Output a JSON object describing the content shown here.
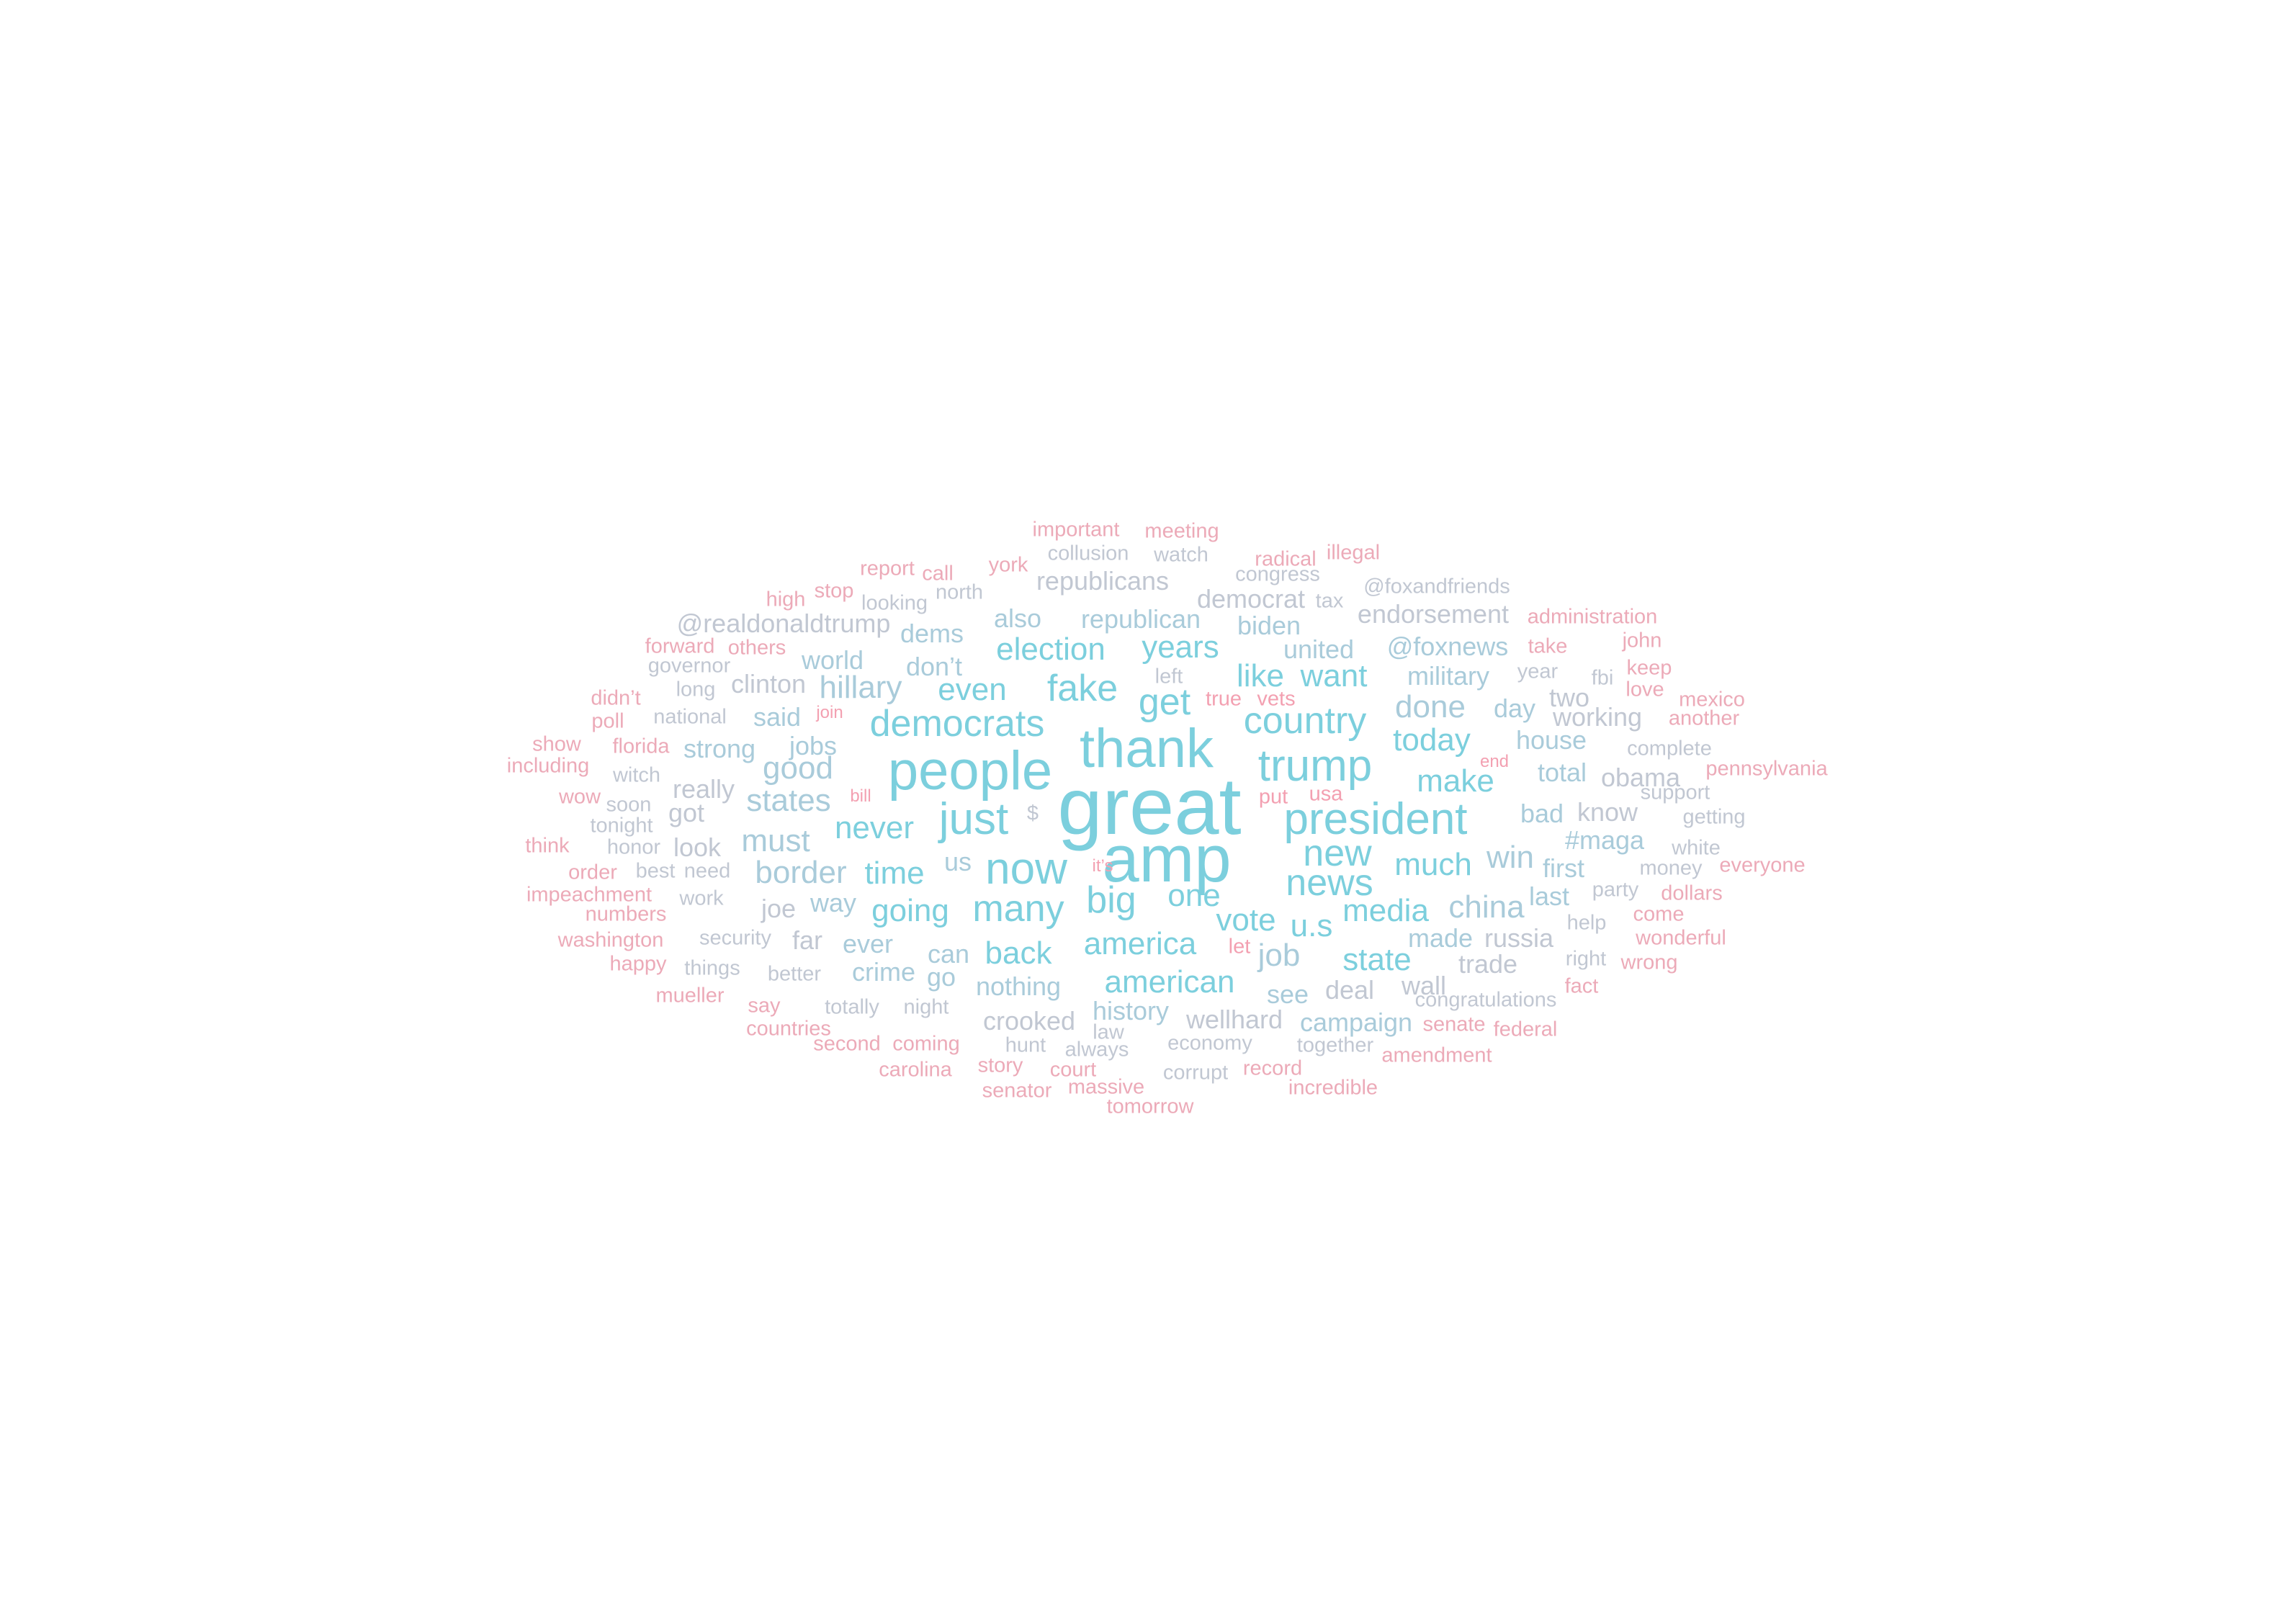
{
  "palette": {
    "primary": "#7ccfdd",
    "secondary": "#a9cbda",
    "tertiary": "#c1c7d2",
    "pink": "#ecaab8",
    "hotpink": "#f3a0b1"
  },
  "words": [
    {
      "text": "great",
      "tier": 10,
      "tone": "primary"
    },
    {
      "text": "amp",
      "tier": 9,
      "tone": "primary"
    },
    {
      "text": "people",
      "tier": 8,
      "tone": "primary"
    },
    {
      "text": "thank",
      "tier": 8,
      "tone": "primary"
    },
    {
      "text": "trump",
      "tier": 7,
      "tone": "primary"
    },
    {
      "text": "just",
      "tier": 7,
      "tone": "primary"
    },
    {
      "text": "now",
      "tier": 7,
      "tone": "primary"
    },
    {
      "text": "president",
      "tier": 7,
      "tone": "primary"
    },
    {
      "text": "news",
      "tier": 6,
      "tone": "primary"
    },
    {
      "text": "country",
      "tier": 6,
      "tone": "primary"
    },
    {
      "text": "democrats",
      "tier": 6,
      "tone": "primary"
    },
    {
      "text": "fake",
      "tier": 6,
      "tone": "primary"
    },
    {
      "text": "get",
      "tier": 6,
      "tone": "primary"
    },
    {
      "text": "big",
      "tier": 6,
      "tone": "primary"
    },
    {
      "text": "many",
      "tier": 6,
      "tone": "primary"
    },
    {
      "text": "new",
      "tier": 6,
      "tone": "primary"
    },
    {
      "text": "america",
      "tier": 5,
      "tone": "primary"
    },
    {
      "text": "never",
      "tier": 5,
      "tone": "primary"
    },
    {
      "text": "much",
      "tier": 5,
      "tone": "primary"
    },
    {
      "text": "media",
      "tier": 5,
      "tone": "primary"
    },
    {
      "text": "vote",
      "tier": 5,
      "tone": "primary"
    },
    {
      "text": "make",
      "tier": 5,
      "tone": "primary"
    },
    {
      "text": "even",
      "tier": 5,
      "tone": "primary"
    },
    {
      "text": "election",
      "tier": 5,
      "tone": "primary"
    },
    {
      "text": "years",
      "tier": 5,
      "tone": "primary"
    },
    {
      "text": "time",
      "tier": 5,
      "tone": "primary"
    },
    {
      "text": "going",
      "tier": 5,
      "tone": "primary"
    },
    {
      "text": "one",
      "tier": 5,
      "tone": "primary"
    },
    {
      "text": "u.s",
      "tier": 5,
      "tone": "primary"
    },
    {
      "text": "want",
      "tier": 5,
      "tone": "primary"
    },
    {
      "text": "like",
      "tier": 5,
      "tone": "primary"
    },
    {
      "text": "american",
      "tier": 5,
      "tone": "primary"
    },
    {
      "text": "back",
      "tier": 5,
      "tone": "primary"
    },
    {
      "text": "state",
      "tier": 5,
      "tone": "primary"
    },
    {
      "text": "today",
      "tier": 5,
      "tone": "primary"
    },
    {
      "text": "border",
      "tier": 5,
      "tone": "secondary"
    },
    {
      "text": "states",
      "tier": 5,
      "tone": "secondary"
    },
    {
      "text": "good",
      "tier": 5,
      "tone": "secondary"
    },
    {
      "text": "hillary",
      "tier": 5,
      "tone": "secondary"
    },
    {
      "text": "must",
      "tier": 5,
      "tone": "secondary"
    },
    {
      "text": "job",
      "tier": 5,
      "tone": "secondary"
    },
    {
      "text": "china",
      "tier": 5,
      "tone": "secondary"
    },
    {
      "text": "win",
      "tier": 5,
      "tone": "secondary"
    },
    {
      "text": "done",
      "tier": 5,
      "tone": "secondary"
    },
    {
      "text": "united",
      "tier": 4,
      "tone": "secondary"
    },
    {
      "text": "@foxnews",
      "tier": 4,
      "tone": "secondary"
    },
    {
      "text": "republican",
      "tier": 4,
      "tone": "secondary"
    },
    {
      "text": "way",
      "tier": 4,
      "tone": "secondary"
    },
    {
      "text": "can",
      "tier": 4,
      "tone": "secondary"
    },
    {
      "text": "nothing",
      "tier": 4,
      "tone": "secondary"
    },
    {
      "text": "see",
      "tier": 4,
      "tone": "secondary"
    },
    {
      "text": "total",
      "tier": 4,
      "tone": "secondary"
    },
    {
      "text": "house",
      "tier": 4,
      "tone": "secondary"
    },
    {
      "text": "bad",
      "tier": 4,
      "tone": "secondary"
    },
    {
      "text": "military",
      "tier": 4,
      "tone": "secondary"
    },
    {
      "text": "don’t",
      "tier": 4,
      "tone": "secondary"
    },
    {
      "text": "dems",
      "tier": 4,
      "tone": "secondary"
    },
    {
      "text": "also",
      "tier": 4,
      "tone": "secondary"
    },
    {
      "text": "biden",
      "tier": 4,
      "tone": "secondary"
    },
    {
      "text": "jobs",
      "tier": 4,
      "tone": "secondary"
    },
    {
      "text": "said",
      "tier": 4,
      "tone": "secondary"
    },
    {
      "text": "strong",
      "tier": 4,
      "tone": "secondary"
    },
    {
      "text": "world",
      "tier": 4,
      "tone": "secondary"
    },
    {
      "text": "made",
      "tier": 4,
      "tone": "secondary"
    },
    {
      "text": "ever",
      "tier": 4,
      "tone": "secondary"
    },
    {
      "text": "crime",
      "tier": 4,
      "tone": "secondary"
    },
    {
      "text": "day",
      "tier": 4,
      "tone": "secondary"
    },
    {
      "text": "first",
      "tier": 4,
      "tone": "secondary"
    },
    {
      "text": "last",
      "tier": 4,
      "tone": "secondary"
    },
    {
      "text": "#maga",
      "tier": 4,
      "tone": "secondary"
    },
    {
      "text": "history",
      "tier": 4,
      "tone": "secondary"
    },
    {
      "text": "campaign",
      "tier": 4,
      "tone": "secondary"
    },
    {
      "text": "us",
      "tier": 4,
      "tone": "secondary"
    },
    {
      "text": "go",
      "tier": 4,
      "tone": "secondary"
    },
    {
      "text": "clinton",
      "tier": 4,
      "tone": "tertiary"
    },
    {
      "text": "endorsement",
      "tier": 4,
      "tone": "tertiary"
    },
    {
      "text": "republicans",
      "tier": 4,
      "tone": "tertiary"
    },
    {
      "text": "democrat",
      "tier": 4,
      "tone": "tertiary"
    },
    {
      "text": "@realdonaldtrump",
      "tier": 4,
      "tone": "tertiary"
    },
    {
      "text": "working",
      "tier": 4,
      "tone": "tertiary"
    },
    {
      "text": "two",
      "tier": 4,
      "tone": "tertiary"
    },
    {
      "text": "obama",
      "tier": 4,
      "tone": "tertiary"
    },
    {
      "text": "know",
      "tier": 4,
      "tone": "tertiary"
    },
    {
      "text": "really",
      "tier": 4,
      "tone": "tertiary"
    },
    {
      "text": "got",
      "tier": 4,
      "tone": "tertiary"
    },
    {
      "text": "look",
      "tier": 4,
      "tone": "tertiary"
    },
    {
      "text": "joe",
      "tier": 4,
      "tone": "tertiary"
    },
    {
      "text": "far",
      "tier": 4,
      "tone": "tertiary"
    },
    {
      "text": "russia",
      "tier": 4,
      "tone": "tertiary"
    },
    {
      "text": "trade",
      "tier": 4,
      "tone": "tertiary"
    },
    {
      "text": "wall",
      "tier": 4,
      "tone": "tertiary"
    },
    {
      "text": "deal",
      "tier": 4,
      "tone": "tertiary"
    },
    {
      "text": "crooked",
      "tier": 4,
      "tone": "tertiary"
    },
    {
      "text": "wellhard",
      "tier": 4,
      "tone": "tertiary"
    },
    {
      "text": "national",
      "tier": 3,
      "tone": "tertiary"
    },
    {
      "text": "north",
      "tier": 3,
      "tone": "tertiary"
    },
    {
      "text": "congress",
      "tier": 3,
      "tone": "tertiary"
    },
    {
      "text": "year",
      "tier": 3,
      "tone": "tertiary"
    },
    {
      "text": "left",
      "tier": 3,
      "tone": "tertiary"
    },
    {
      "text": "party",
      "tier": 3,
      "tone": "tertiary"
    },
    {
      "text": "help",
      "tier": 3,
      "tone": "tertiary"
    },
    {
      "text": "right",
      "tier": 3,
      "tone": "tertiary"
    },
    {
      "text": "security",
      "tier": 3,
      "tone": "tertiary"
    },
    {
      "text": "better",
      "tier": 3,
      "tone": "tertiary"
    },
    {
      "text": "totally",
      "tier": 3,
      "tone": "tertiary"
    },
    {
      "text": "night",
      "tier": 3,
      "tone": "tertiary"
    },
    {
      "text": "things",
      "tier": 3,
      "tone": "tertiary"
    },
    {
      "text": "work",
      "tier": 3,
      "tone": "tertiary"
    },
    {
      "text": "need",
      "tier": 3,
      "tone": "tertiary"
    },
    {
      "text": "best",
      "tier": 3,
      "tone": "tertiary"
    },
    {
      "text": "honor",
      "tier": 3,
      "tone": "tertiary"
    },
    {
      "text": "tonight",
      "tier": 3,
      "tone": "tertiary"
    },
    {
      "text": "soon",
      "tier": 3,
      "tone": "tertiary"
    },
    {
      "text": "witch",
      "tier": 3,
      "tone": "tertiary"
    },
    {
      "text": "long",
      "tier": 3,
      "tone": "tertiary"
    },
    {
      "text": "governor",
      "tier": 3,
      "tone": "tertiary"
    },
    {
      "text": "collusion",
      "tier": 3,
      "tone": "tertiary"
    },
    {
      "text": "looking",
      "tier": 3,
      "tone": "tertiary"
    },
    {
      "text": "complete",
      "tier": 3,
      "tone": "tertiary"
    },
    {
      "text": "support",
      "tier": 3,
      "tone": "tertiary"
    },
    {
      "text": "money",
      "tier": 3,
      "tone": "tertiary"
    },
    {
      "text": "white",
      "tier": 3,
      "tone": "tertiary"
    },
    {
      "text": "congratulations",
      "tier": 3,
      "tone": "tertiary"
    },
    {
      "text": "economy",
      "tier": 3,
      "tone": "tertiary"
    },
    {
      "text": "hunt",
      "tier": 3,
      "tone": "tertiary"
    },
    {
      "text": "always",
      "tier": 3,
      "tone": "tertiary"
    },
    {
      "text": "law",
      "tier": 3,
      "tone": "tertiary"
    },
    {
      "text": "together",
      "tier": 3,
      "tone": "tertiary"
    },
    {
      "text": "tax",
      "tier": 3,
      "tone": "tertiary"
    },
    {
      "text": "@foxandfriends",
      "tier": 3,
      "tone": "tertiary"
    },
    {
      "text": "watch",
      "tier": 3,
      "tone": "tertiary"
    },
    {
      "text": "corrupt",
      "tier": 3,
      "tone": "tertiary"
    },
    {
      "text": "$",
      "tier": 3,
      "tone": "tertiary"
    },
    {
      "text": "fbi",
      "tier": 3,
      "tone": "tertiary"
    },
    {
      "text": "getting",
      "tier": 3,
      "tone": "tertiary"
    },
    {
      "text": "senate",
      "tier": 3,
      "tone": "pink"
    },
    {
      "text": "coming",
      "tier": 3,
      "tone": "pink"
    },
    {
      "text": "say",
      "tier": 3,
      "tone": "pink"
    },
    {
      "text": "countries",
      "tier": 3,
      "tone": "pink"
    },
    {
      "text": "others",
      "tier": 3,
      "tone": "pink"
    },
    {
      "text": "florida",
      "tier": 3,
      "tone": "pink"
    },
    {
      "text": "numbers",
      "tier": 3,
      "tone": "pink"
    },
    {
      "text": "washington",
      "tier": 3,
      "tone": "pink"
    },
    {
      "text": "impeachment",
      "tier": 3,
      "tone": "pink"
    },
    {
      "text": "order",
      "tier": 3,
      "tone": "pink"
    },
    {
      "text": "including",
      "tier": 3,
      "tone": "pink"
    },
    {
      "text": "forward",
      "tier": 3,
      "tone": "pink"
    },
    {
      "text": "didn’t",
      "tier": 3,
      "tone": "pink"
    },
    {
      "text": "poll",
      "tier": 3,
      "tone": "pink"
    },
    {
      "text": "show",
      "tier": 3,
      "tone": "pink"
    },
    {
      "text": "wow",
      "tier": 3,
      "tone": "pink"
    },
    {
      "text": "think",
      "tier": 3,
      "tone": "pink"
    },
    {
      "text": "happy",
      "tier": 3,
      "tone": "pink"
    },
    {
      "text": "mueller",
      "tier": 3,
      "tone": "pink"
    },
    {
      "text": "administration",
      "tier": 3,
      "tone": "pink"
    },
    {
      "text": "john",
      "tier": 3,
      "tone": "pink"
    },
    {
      "text": "take",
      "tier": 3,
      "tone": "pink"
    },
    {
      "text": "keep",
      "tier": 3,
      "tone": "pink"
    },
    {
      "text": "love",
      "tier": 3,
      "tone": "pink"
    },
    {
      "text": "mexico",
      "tier": 3,
      "tone": "pink"
    },
    {
      "text": "another",
      "tier": 3,
      "tone": "pink"
    },
    {
      "text": "pennsylvania",
      "tier": 3,
      "tone": "pink"
    },
    {
      "text": "everyone",
      "tier": 3,
      "tone": "pink"
    },
    {
      "text": "dollars",
      "tier": 3,
      "tone": "pink"
    },
    {
      "text": "come",
      "tier": 3,
      "tone": "pink"
    },
    {
      "text": "wonderful",
      "tier": 3,
      "tone": "pink"
    },
    {
      "text": "wrong",
      "tier": 3,
      "tone": "pink"
    },
    {
      "text": "fact",
      "tier": 3,
      "tone": "pink"
    },
    {
      "text": "federal",
      "tier": 3,
      "tone": "pink"
    },
    {
      "text": "amendment",
      "tier": 3,
      "tone": "pink"
    },
    {
      "text": "incredible",
      "tier": 3,
      "tone": "pink"
    },
    {
      "text": "record",
      "tier": 3,
      "tone": "pink"
    },
    {
      "text": "tomorrow",
      "tier": 3,
      "tone": "pink"
    },
    {
      "text": "massive",
      "tier": 3,
      "tone": "pink"
    },
    {
      "text": "senator",
      "tier": 3,
      "tone": "pink"
    },
    {
      "text": "story",
      "tier": 3,
      "tone": "pink"
    },
    {
      "text": "court",
      "tier": 3,
      "tone": "pink"
    },
    {
      "text": "carolina",
      "tier": 3,
      "tone": "pink"
    },
    {
      "text": "second",
      "tier": 3,
      "tone": "pink"
    },
    {
      "text": "important",
      "tier": 3,
      "tone": "pink"
    },
    {
      "text": "meeting",
      "tier": 3,
      "tone": "pink"
    },
    {
      "text": "radical",
      "tier": 3,
      "tone": "pink"
    },
    {
      "text": "illegal",
      "tier": 3,
      "tone": "pink"
    },
    {
      "text": "york",
      "tier": 3,
      "tone": "pink"
    },
    {
      "text": "report",
      "tier": 3,
      "tone": "pink"
    },
    {
      "text": "call",
      "tier": 3,
      "tone": "pink"
    },
    {
      "text": "high",
      "tier": 3,
      "tone": "pink"
    },
    {
      "text": "stop",
      "tier": 3,
      "tone": "pink"
    },
    {
      "text": "true",
      "tier": 3,
      "tone": "hotpink"
    },
    {
      "text": "vets",
      "tier": 3,
      "tone": "hotpink"
    },
    {
      "text": "put",
      "tier": 3,
      "tone": "hotpink"
    },
    {
      "text": "usa",
      "tier": 3,
      "tone": "hotpink"
    },
    {
      "text": "it’s",
      "tier": 2,
      "tone": "hotpink"
    },
    {
      "text": "let",
      "tier": 3,
      "tone": "hotpink"
    },
    {
      "text": "join",
      "tier": 2,
      "tone": "hotpink"
    },
    {
      "text": "bill",
      "tier": 2,
      "tone": "hotpink"
    },
    {
      "text": "end",
      "tier": 2,
      "tone": "hotpink"
    }
  ]
}
